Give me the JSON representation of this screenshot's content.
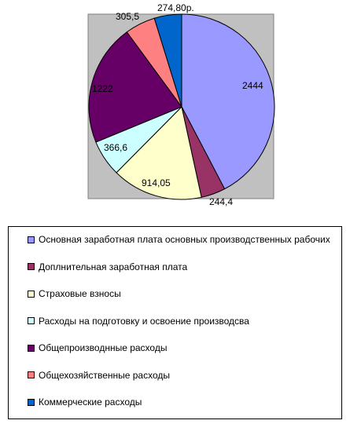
{
  "chart_data": {
    "type": "pie",
    "title": "",
    "plot_area_color": "#c0c0c0",
    "start_angle_deg": 0,
    "direction": "clockwise",
    "slices": [
      {
        "label": "Основная заработная плата основных производственных рабочих",
        "value": 2444,
        "data_label": "2444",
        "color": "#9999ff"
      },
      {
        "label": "Доплнительная заработная плата",
        "value": 244.4,
        "data_label": "244,4",
        "color": "#993366"
      },
      {
        "label": "Страховые взносы",
        "value": 914.05,
        "data_label": "914,05",
        "color": "#ffffcc"
      },
      {
        "label": "Расходы на подготовку и освоение производсва",
        "value": 366.6,
        "data_label": "366,6",
        "color": "#ccffff"
      },
      {
        "label": "Общепроизводнные расходы",
        "value": 1222,
        "data_label": "1222",
        "color": "#660066"
      },
      {
        "label": "Общехозяйственные расходы",
        "value": 305.5,
        "data_label": "305,5",
        "color": "#ff8080"
      },
      {
        "label": "Коммерческие расходы",
        "value": 274.8,
        "data_label": "274,80р.",
        "color": "#0066cc"
      }
    ],
    "legend_position": "bottom"
  }
}
